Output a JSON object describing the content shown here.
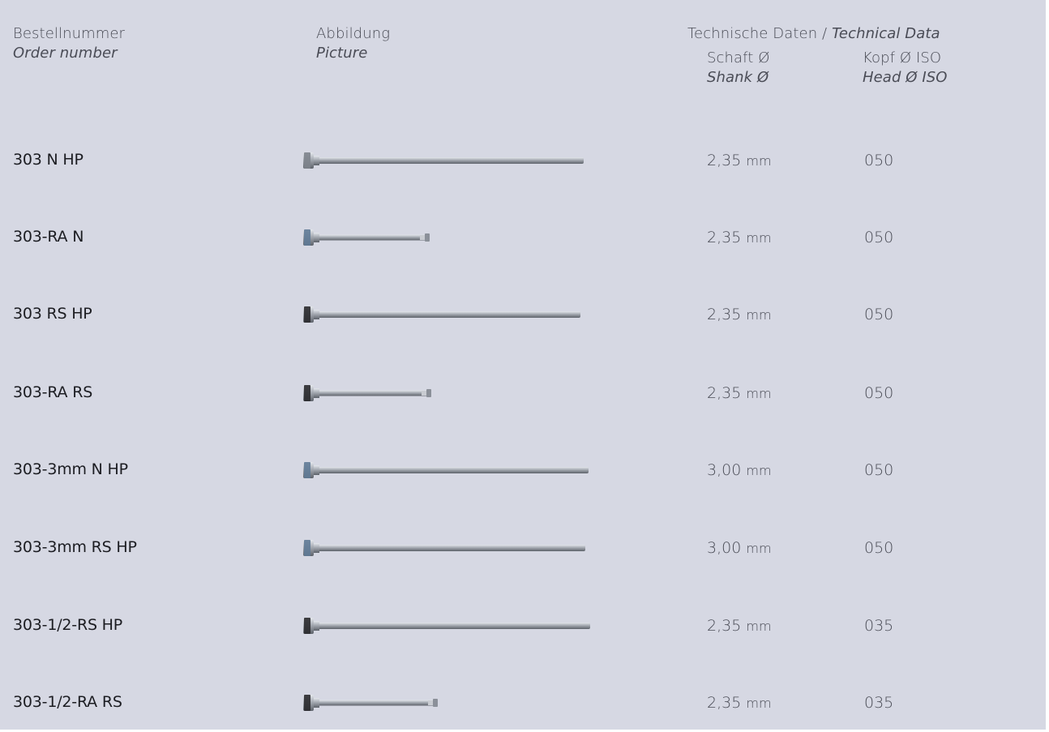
{
  "header": {
    "col1_de": "Bestellnummer",
    "col1_en": "Order number",
    "col2_de": "Abbildung",
    "col2_en": "Picture",
    "tech_de": "Technische Daten /",
    "tech_en": "Technical Data",
    "shank_de": "Schaft Ø",
    "shank_en": "Shank Ø",
    "head_de": "Kopf Ø ISO",
    "head_en": "Head Ø ISO"
  },
  "colors": {
    "background": "#d6d8e3",
    "steel": "#9aa0a8",
    "blue_band": "#5f7a96",
    "black_band": "#2a2a2e"
  },
  "rows": [
    {
      "order": "303 N HP",
      "shank": "2,35",
      "unit": "mm",
      "head": "050",
      "tool": {
        "band": "grey",
        "length": "long"
      }
    },
    {
      "order": "303-RA N",
      "shank": "2,35",
      "unit": "mm",
      "head": "050",
      "tool": {
        "band": "blue",
        "length": "short"
      }
    },
    {
      "order": "303 RS HP",
      "shank": "2,35",
      "unit": "mm",
      "head": "050",
      "tool": {
        "band": "black",
        "length": "long"
      }
    },
    {
      "order": "303-RA RS",
      "shank": "2,35",
      "unit": "mm",
      "head": "050",
      "tool": {
        "band": "black",
        "length": "short"
      }
    },
    {
      "order": "303-3mm N HP",
      "shank": "3,00",
      "unit": "mm",
      "head": "050",
      "tool": {
        "band": "blue",
        "length": "long"
      }
    },
    {
      "order": "303-3mm RS HP",
      "shank": "3,00",
      "unit": "mm",
      "head": "050",
      "tool": {
        "band": "blue",
        "length": "long"
      }
    },
    {
      "order": "303-1/2-RS HP",
      "shank": "2,35",
      "unit": "mm",
      "head": "035",
      "tool": {
        "band": "black",
        "length": "long"
      }
    },
    {
      "order": "303-1/2-RA RS",
      "shank": "2,35",
      "unit": "mm",
      "head": "035",
      "tool": {
        "band": "black",
        "length": "short"
      }
    }
  ]
}
